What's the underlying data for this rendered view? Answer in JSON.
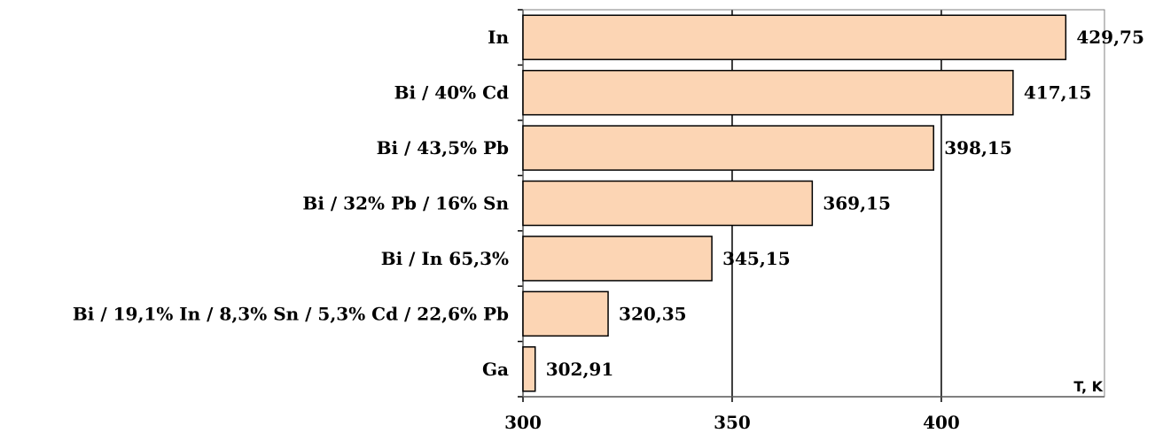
{
  "chart_data": {
    "type": "bar",
    "orientation": "horizontal",
    "categories": [
      "In",
      "Bi / 40% Cd",
      "Bi / 43,5% Pb",
      "Bi / 32% Pb / 16% Sn",
      "Bi / In 65,3%",
      "Bi / 19,1% In / 8,3% Sn / 5,3% Cd / 22,6% Pb",
      "Ga"
    ],
    "values": [
      429.75,
      417.15,
      398.15,
      369.15,
      345.15,
      320.35,
      302.91
    ],
    "value_labels": [
      "429,75",
      "417,15",
      "398,15",
      "369,15",
      "345,15",
      "320,35",
      "302,91"
    ],
    "xlabel": "T, K",
    "xlim": [
      300,
      439
    ],
    "xticks": [
      300,
      350,
      400
    ],
    "grid": true,
    "colors": {
      "bar_fill": "#fcd5b4",
      "bar_stroke": "#000000",
      "grid": "#000000",
      "frame": "#808080"
    }
  }
}
